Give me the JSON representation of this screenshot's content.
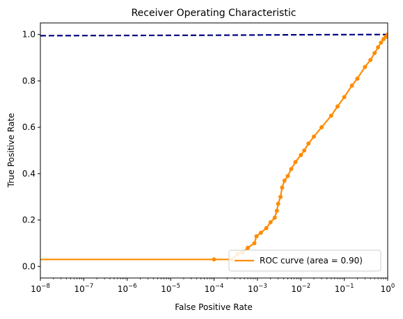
{
  "chart_data": {
    "type": "line",
    "title": "Receiver Operating Characteristic",
    "xlabel": "False Positive Rate",
    "ylabel": "True Positive Rate",
    "xscale": "log",
    "xlim": [
      1e-08,
      1
    ],
    "ylim": [
      -0.05,
      1.05
    ],
    "x_ticks": [
      {
        "value": 1e-08,
        "base": "10",
        "exp": "−8"
      },
      {
        "value": 1e-07,
        "base": "10",
        "exp": "−7"
      },
      {
        "value": 1e-06,
        "base": "10",
        "exp": "−6"
      },
      {
        "value": 1e-05,
        "base": "10",
        "exp": "−5"
      },
      {
        "value": 0.0001,
        "base": "10",
        "exp": "−4"
      },
      {
        "value": 0.001,
        "base": "10",
        "exp": "−3"
      },
      {
        "value": 0.01,
        "base": "10",
        "exp": "−2"
      },
      {
        "value": 0.1,
        "base": "10",
        "exp": "−1"
      },
      {
        "value": 1,
        "base": "10",
        "exp": "0"
      }
    ],
    "y_ticks": [
      {
        "value": 0.0,
        "label": "0.0"
      },
      {
        "value": 0.2,
        "label": "0.2"
      },
      {
        "value": 0.4,
        "label": "0.4"
      },
      {
        "value": 0.6,
        "label": "0.6"
      },
      {
        "value": 0.8,
        "label": "0.8"
      },
      {
        "value": 1.0,
        "label": "1.0"
      }
    ],
    "legend": {
      "location": "lower-right"
    },
    "series": [
      {
        "name": "ROC curve (area = 0.90)",
        "color": "#ff8c00",
        "style": "solid",
        "markers": true,
        "x": [
          1e-08,
          0.0001,
          0.00026,
          0.00035,
          0.00045,
          0.0006,
          0.00085,
          0.00095,
          0.0012,
          0.0016,
          0.002,
          0.0025,
          0.0028,
          0.003,
          0.0034,
          0.0037,
          0.0042,
          0.005,
          0.006,
          0.0075,
          0.01,
          0.012,
          0.015,
          0.02,
          0.03,
          0.05,
          0.07,
          0.1,
          0.15,
          0.2,
          0.3,
          0.4,
          0.5,
          0.6,
          0.7,
          0.8,
          0.9,
          1.0
        ],
        "y": [
          0.03,
          0.03,
          0.03,
          0.055,
          0.06,
          0.08,
          0.1,
          0.13,
          0.145,
          0.165,
          0.19,
          0.21,
          0.24,
          0.27,
          0.3,
          0.34,
          0.37,
          0.39,
          0.42,
          0.45,
          0.48,
          0.5,
          0.53,
          0.56,
          0.6,
          0.65,
          0.69,
          0.73,
          0.78,
          0.81,
          0.86,
          0.89,
          0.92,
          0.945,
          0.965,
          0.98,
          0.99,
          1.0
        ]
      },
      {
        "name": "",
        "color": "#000080",
        "style": "dashed",
        "markers": false,
        "x": [
          1e-08,
          1e-06,
          0.0001,
          0.01,
          1
        ],
        "y": [
          0.995,
          0.996,
          0.997,
          0.999,
          1.0
        ]
      }
    ]
  }
}
